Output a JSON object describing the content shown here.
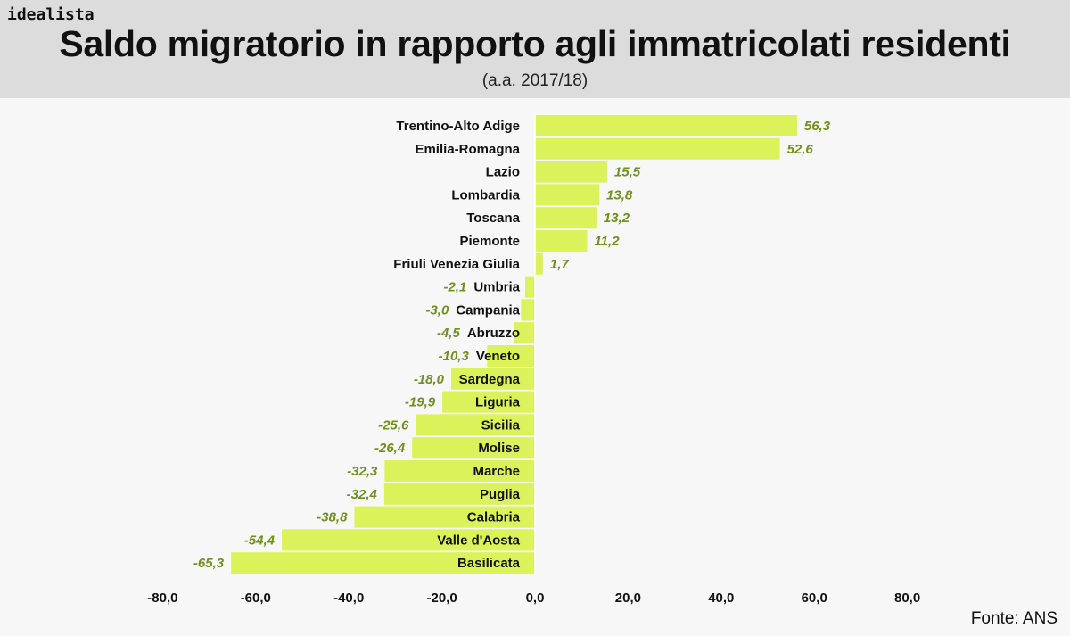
{
  "brand": "idealista",
  "source": "Fonte: ANS",
  "colors": {
    "bar": "#dcf25a",
    "value_label": "#6f8f1e",
    "header_bg": "#dcdcdc"
  },
  "chart_data": {
    "type": "bar",
    "orientation": "horizontal",
    "title": "Saldo migratorio in rapporto agli immatricolati residenti",
    "subtitle": "(a.a. 2017/18)",
    "categories": [
      "Trentino-Alto Adige",
      "Emilia-Romagna",
      "Lazio",
      "Lombardia",
      "Toscana",
      "Piemonte",
      "Friuli Venezia Giulia",
      "Umbria",
      "Campania",
      "Abruzzo",
      "Veneto",
      "Sardegna",
      "Liguria",
      "Sicilia",
      "Molise",
      "Marche",
      "Puglia",
      "Calabria",
      "Valle d'Aosta",
      "Basilicata"
    ],
    "values": [
      56.3,
      52.6,
      15.5,
      13.8,
      13.2,
      11.2,
      1.7,
      -2.1,
      -3.0,
      -4.5,
      -10.3,
      -18.0,
      -19.9,
      -25.6,
      -26.4,
      -32.3,
      -32.4,
      -38.8,
      -54.4,
      -65.3
    ],
    "value_labels": [
      "56,3",
      "52,6",
      "15,5",
      "13,8",
      "13,2",
      "11,2",
      "1,7",
      "-2,1",
      "-3,0",
      "-4,5",
      "-10,3",
      "-18,0",
      "-19,9",
      "-25,6",
      "-26,4",
      "-32,3",
      "-32,4",
      "-38,8",
      "-54,4",
      "-65,3"
    ],
    "xlim": [
      -80,
      80
    ],
    "x_ticks": [
      -80,
      -60,
      -40,
      -20,
      0,
      20,
      40,
      60,
      80
    ],
    "x_tick_labels": [
      "-80,0",
      "-60,0",
      "-40,0",
      "-20,0",
      "0,0",
      "20,0",
      "40,0",
      "60,0",
      "80,0"
    ],
    "grid": false,
    "legend": "none"
  }
}
